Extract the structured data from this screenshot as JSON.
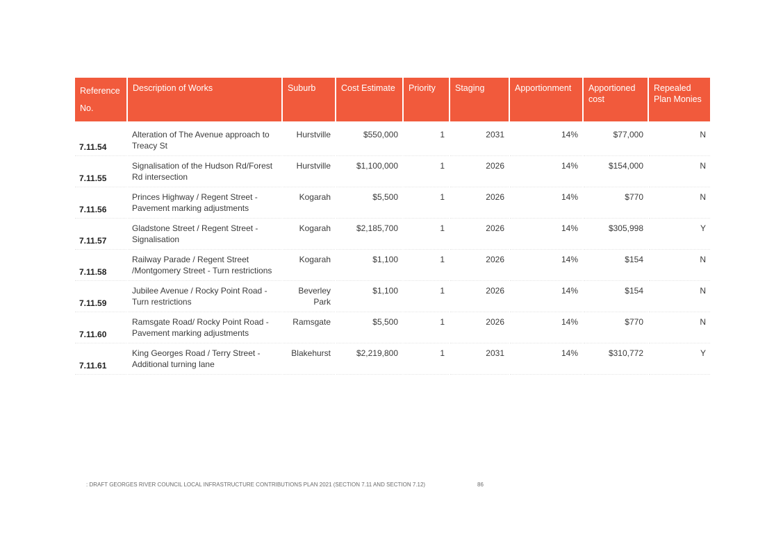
{
  "table": {
    "headers": {
      "reference": "Reference No.",
      "description": "Description of Works",
      "suburb": "Suburb",
      "cost_estimate": "Cost Estimate",
      "priority": "Priority",
      "staging": "Staging",
      "apportionment": "Apportionment",
      "apportioned_cost": "Apportioned cost",
      "repealed": "Repealed Plan Monies"
    },
    "header_color": "#f15a3c",
    "rows": [
      {
        "ref": "7.11.54",
        "description": "Alteration of The Avenue approach to Treacy St",
        "suburb": "Hurstville",
        "cost": "$550,000",
        "priority": "1",
        "staging": "2031",
        "apportionment": "14%",
        "apportioned_cost": "$77,000",
        "repealed": "N"
      },
      {
        "ref": "7.11.55",
        "description": "Signalisation of the Hudson Rd/Forest Rd intersection",
        "suburb": "Hurstville",
        "cost": "$1,100,000",
        "priority": "1",
        "staging": "2026",
        "apportionment": "14%",
        "apportioned_cost": "$154,000",
        "repealed": "N"
      },
      {
        "ref": "7.11.56",
        "description": "Princes Highway / Regent Street - Pavement marking adjustments",
        "suburb": "Kogarah",
        "cost": "$5,500",
        "priority": "1",
        "staging": "2026",
        "apportionment": "14%",
        "apportioned_cost": "$770",
        "repealed": "N"
      },
      {
        "ref": "7.11.57",
        "description": "Gladstone Street / Regent Street - Signalisation",
        "suburb": "Kogarah",
        "cost": "$2,185,700",
        "priority": "1",
        "staging": "2026",
        "apportionment": "14%",
        "apportioned_cost": "$305,998",
        "repealed": "Y"
      },
      {
        "ref": "7.11.58",
        "description": "Railway Parade / Regent Street /Montgomery Street - Turn restrictions",
        "suburb": "Kogarah",
        "cost": "$1,100",
        "priority": "1",
        "staging": "2026",
        "apportionment": "14%",
        "apportioned_cost": "$154",
        "repealed": "N"
      },
      {
        "ref": "7.11.59",
        "description": "Jubilee Avenue / Rocky Point Road - Turn restrictions",
        "suburb": "Beverley Park",
        "cost": "$1,100",
        "priority": "1",
        "staging": "2026",
        "apportionment": "14%",
        "apportioned_cost": "$154",
        "repealed": "N"
      },
      {
        "ref": "7.11.60",
        "description": "Ramsgate Road/ Rocky Point Road - Pavement marking adjustments",
        "suburb": "Ramsgate",
        "cost": "$5,500",
        "priority": "1",
        "staging": "2026",
        "apportionment": "14%",
        "apportioned_cost": "$770",
        "repealed": "N"
      },
      {
        "ref": "7.11.61",
        "description": "King Georges Road / Terry Street - Additional turning lane",
        "suburb": "Blakehurst",
        "cost": "$2,219,800",
        "priority": "1",
        "staging": "2031",
        "apportionment": "14%",
        "apportioned_cost": "$310,772",
        "repealed": "Y"
      }
    ]
  },
  "footer": {
    "text": ": DRAFT GEORGES RIVER COUNCIL LOCAL INFRASTRUCTURE CONTRIBUTIONS PLAN 2021 (SECTION 7.11 AND SECTION 7.12)",
    "page_number": "86"
  }
}
